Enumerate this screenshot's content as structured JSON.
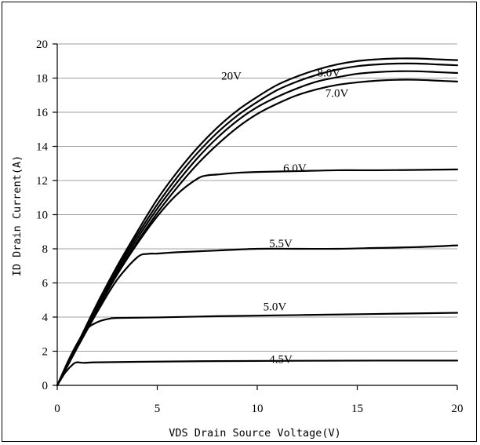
{
  "chart_data": {
    "type": "line",
    "title": "",
    "xlabel": "VDS Drain Source Voltage(V)",
    "ylabel": "ID Drain Current(A)",
    "xlim": [
      0,
      20
    ],
    "ylim": [
      0,
      20
    ],
    "x_ticks": [
      "0",
      "5",
      "10",
      "15",
      "20"
    ],
    "y_ticks": [
      "0",
      "2",
      "4",
      "6",
      "8",
      "10",
      "12",
      "14",
      "16",
      "18",
      "20"
    ],
    "grid": "horizontal",
    "series": [
      {
        "name": "20V",
        "x": [
          0,
          1,
          2,
          3,
          4,
          5,
          6,
          7,
          8,
          9,
          10,
          11,
          12,
          13,
          14,
          15,
          16,
          17,
          18,
          19,
          20
        ],
        "y": [
          0,
          2.4,
          4.8,
          7.0,
          9.0,
          10.9,
          12.5,
          13.9,
          15.1,
          16.1,
          16.9,
          17.6,
          18.1,
          18.5,
          18.8,
          19.0,
          19.1,
          19.15,
          19.15,
          19.1,
          19.05
        ]
      },
      {
        "name": "8.0V",
        "x": [
          0,
          1,
          2,
          3,
          4,
          5,
          6,
          7,
          8,
          9,
          10,
          11,
          12,
          13,
          14,
          15,
          16,
          17,
          18,
          19,
          20
        ],
        "y": [
          0,
          2.35,
          4.7,
          6.85,
          8.8,
          10.6,
          12.2,
          13.6,
          14.8,
          15.8,
          16.6,
          17.3,
          17.8,
          18.2,
          18.5,
          18.7,
          18.8,
          18.85,
          18.85,
          18.8,
          18.75
        ]
      },
      {
        "name": "",
        "x": [
          0,
          1,
          2,
          3,
          4,
          5,
          6,
          7,
          8,
          9,
          10,
          11,
          12,
          13,
          14,
          15,
          16,
          17,
          18,
          19,
          20
        ],
        "y": [
          0,
          2.3,
          4.6,
          6.7,
          8.6,
          10.35,
          11.9,
          13.3,
          14.5,
          15.5,
          16.3,
          16.9,
          17.4,
          17.8,
          18.05,
          18.25,
          18.35,
          18.4,
          18.4,
          18.35,
          18.3
        ]
      },
      {
        "name": "7.0V",
        "x": [
          0,
          1,
          2,
          3,
          4,
          5,
          6,
          7,
          8,
          9,
          10,
          11,
          12,
          13,
          14,
          15,
          16,
          17,
          18,
          19,
          20
        ],
        "y": [
          0,
          2.25,
          4.5,
          6.55,
          8.4,
          10.1,
          11.6,
          12.95,
          14.1,
          15.1,
          15.9,
          16.5,
          17.0,
          17.35,
          17.6,
          17.75,
          17.85,
          17.9,
          17.9,
          17.85,
          17.8
        ]
      },
      {
        "name": "6.0V",
        "x": [
          0,
          1,
          2,
          3,
          4,
          5,
          6,
          7,
          7.5,
          8,
          9,
          10,
          12,
          14,
          16,
          18,
          20
        ],
        "y": [
          0,
          2.25,
          4.45,
          6.5,
          8.3,
          9.9,
          11.2,
          12.1,
          12.3,
          12.35,
          12.45,
          12.5,
          12.55,
          12.6,
          12.6,
          12.62,
          12.65
        ]
      },
      {
        "name": "5.5V",
        "x": [
          0,
          1,
          2,
          3,
          4,
          4.5,
          5,
          6,
          8,
          10,
          12,
          14,
          16,
          18,
          20
        ],
        "y": [
          0,
          2.2,
          4.3,
          6.2,
          7.5,
          7.7,
          7.72,
          7.8,
          7.9,
          8.0,
          8.0,
          8.0,
          8.05,
          8.1,
          8.2
        ]
      },
      {
        "name": "5.0V",
        "x": [
          0,
          0.7,
          1.4,
          2.0,
          2.6,
          3.0,
          5,
          8,
          11,
          14,
          17,
          20
        ],
        "y": [
          0,
          1.8,
          3.2,
          3.7,
          3.9,
          3.95,
          3.98,
          4.05,
          4.1,
          4.15,
          4.2,
          4.25
        ]
      },
      {
        "name": "4.5V",
        "x": [
          0,
          0.4,
          0.8,
          1.0,
          1.3,
          2,
          4,
          8,
          12,
          16,
          20
        ],
        "y": [
          0,
          0.75,
          1.25,
          1.35,
          1.32,
          1.35,
          1.38,
          1.42,
          1.44,
          1.45,
          1.45
        ]
      }
    ],
    "curve_labels": [
      {
        "text": "20V",
        "x": 8.2,
        "y": 17.9
      },
      {
        "text": "8.0V",
        "x": 13.0,
        "y": 18.1
      },
      {
        "text": "7.0V",
        "x": 13.4,
        "y": 16.9
      },
      {
        "text": "6.0V",
        "x": 11.3,
        "y": 12.5
      },
      {
        "text": "5.5V",
        "x": 10.6,
        "y": 8.1
      },
      {
        "text": "5.0V",
        "x": 10.3,
        "y": 4.4
      },
      {
        "text": "4.5V",
        "x": 10.6,
        "y": 1.3
      }
    ]
  }
}
